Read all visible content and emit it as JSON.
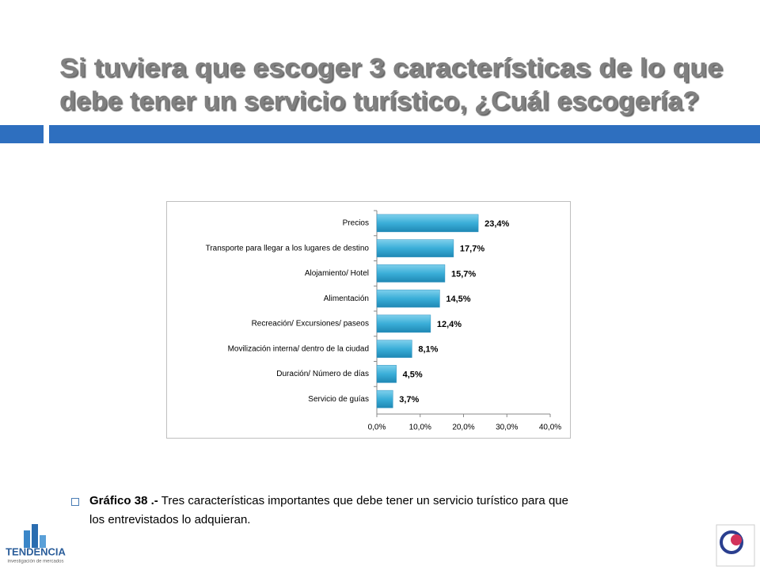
{
  "chart_data": {
    "type": "hbar",
    "title": [
      "Si tuviera que escoger 3 características de lo que",
      "debe tener un servicio turístico, ¿Cuál escogería?"
    ],
    "categories": [
      "Precios",
      "Transporte para llegar a los lugares de destino",
      "Alojamiento/ Hotel",
      "Alimentación",
      "Recreación/ Excursiones/ paseos",
      "Movilización interna/  dentro de la ciudad",
      "Duración/ Número de días",
      "Servicio de guías"
    ],
    "values": [
      23.4,
      17.7,
      15.7,
      14.5,
      12.4,
      8.1,
      4.5,
      3.7
    ],
    "value_labels": [
      "23,4%",
      "17,7%",
      "15,7%",
      "14,5%",
      "12,4%",
      "8,1%",
      "4,5%",
      "3,7%"
    ],
    "color": "#3aaed8",
    "xlim": [
      0,
      40
    ],
    "xticks": [
      {
        "value": 0,
        "label": "0,0%"
      },
      {
        "value": 10,
        "label": "10,0%"
      },
      {
        "value": 20,
        "label": "20,0%"
      },
      {
        "value": 30,
        "label": "30,0%"
      },
      {
        "value": 40,
        "label": "40,0%"
      }
    ],
    "grid": false,
    "caption": {
      "label": "Gráfico 38 .-",
      "text": "Tres características importantes que debe tener un servicio turístico para que los entrevistados lo adquieran."
    },
    "logo": {
      "name": "TENDENCIA",
      "tagline": "investigación de mercados"
    }
  }
}
